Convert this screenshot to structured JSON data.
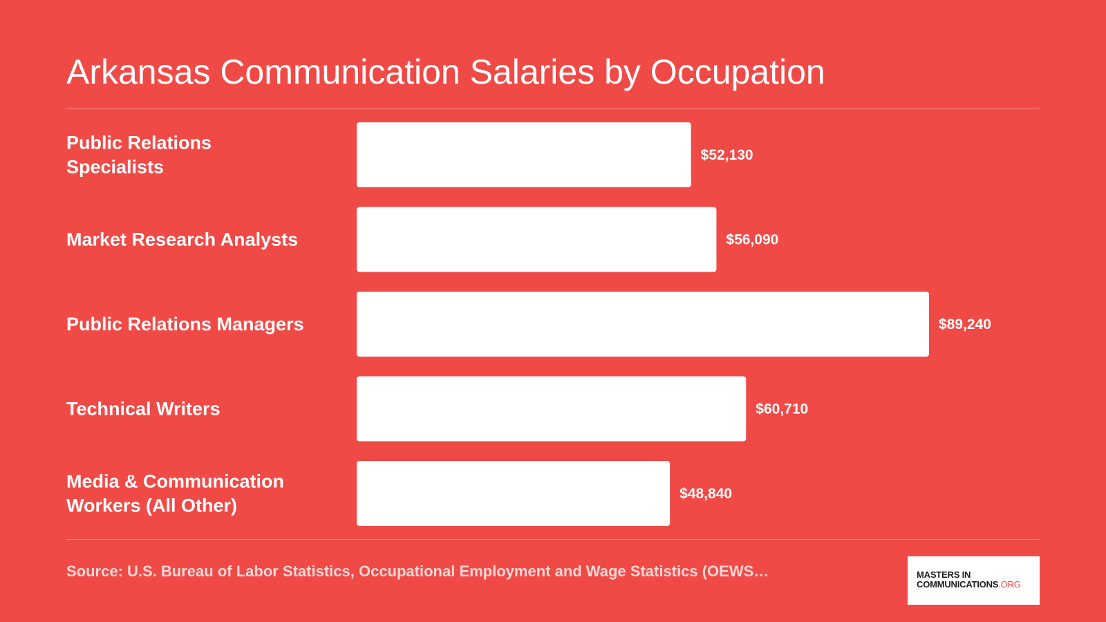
{
  "chart_data": {
    "type": "bar",
    "orientation": "horizontal",
    "title": "Arkansas Communication Salaries by Occupation",
    "categories": [
      [
        "Public Relations",
        "Specialists"
      ],
      [
        "Market Research Analysts"
      ],
      [
        "Public Relations Managers"
      ],
      [
        "Technical Writers"
      ],
      [
        "Media & Communication",
        "Workers (All Other)"
      ]
    ],
    "values": [
      52130,
      56090,
      89240,
      60710,
      48840
    ],
    "value_labels": [
      "$52,130",
      "$56,090",
      "$89,240",
      "$60,710",
      "$48,840"
    ],
    "xlim": [
      0,
      89240
    ],
    "grid": false,
    "colors": {
      "background": "#F04A47",
      "bar": "#FFFFFF",
      "text": "#FFFFFF"
    }
  },
  "footer": {
    "source": "Source: U.S. Bureau of Labor Statistics, Occupational Employment and Wage Statistics (OEWS…"
  },
  "logo": {
    "line1": "MASTERS IN",
    "line2_main": "COMMUNICATIONS",
    "line2_accent": ".ORG",
    "accent_color": "#F04A47"
  }
}
